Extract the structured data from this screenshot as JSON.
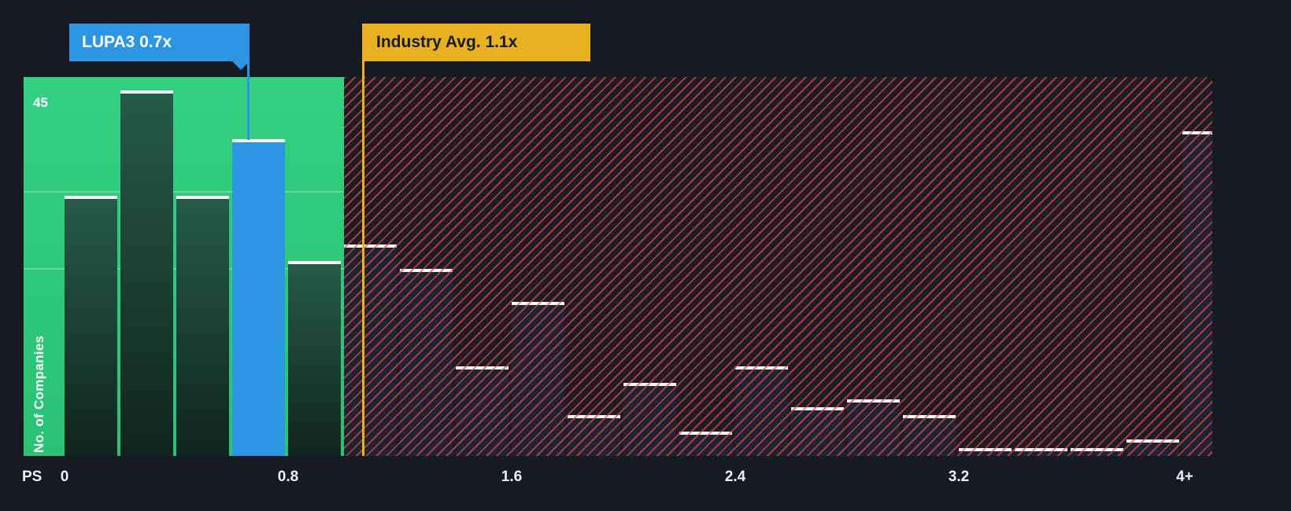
{
  "chart_data": {
    "type": "bar",
    "x_axis_prefix": "PS",
    "x_tick_labels": [
      "0",
      "0.8",
      "1.6",
      "2.4",
      "3.2",
      "4+"
    ],
    "x_range": [
      0,
      4
    ],
    "bin_width": 0.2,
    "bin_starts": [
      0,
      0.2,
      0.4,
      0.6,
      0.8,
      1.0,
      1.2,
      1.4,
      1.6,
      1.8,
      2.0,
      2.2,
      2.4,
      2.6,
      2.8,
      3.0,
      3.2,
      3.4,
      3.6,
      3.8,
      4.0
    ],
    "values": [
      32,
      45,
      32,
      39,
      24,
      26,
      23,
      11,
      19,
      5,
      9,
      3,
      11,
      6,
      7,
      5,
      1,
      1,
      1,
      2,
      40
    ],
    "y_axis_label": "No. of Companies",
    "y_max_label": "45",
    "ylim": [
      0,
      45
    ],
    "grid": "minimal",
    "legend": "none",
    "highlight": {
      "index": 3,
      "label": "LUPA3 0.7x",
      "value": 0.7
    },
    "industry_avg": {
      "label": "Industry Avg. 1.1x",
      "value": 1.1
    },
    "green_zone_range": [
      0,
      1.0
    ],
    "colors": {
      "background": "#151a23",
      "green_zone": "#2ac173",
      "company_blue": "#2d96e4",
      "industry_amber": "#e9b121",
      "hatch_red": "#d94a4a",
      "bar_dark": "#1d2330",
      "bar_cap_white": "#ffffff"
    }
  }
}
